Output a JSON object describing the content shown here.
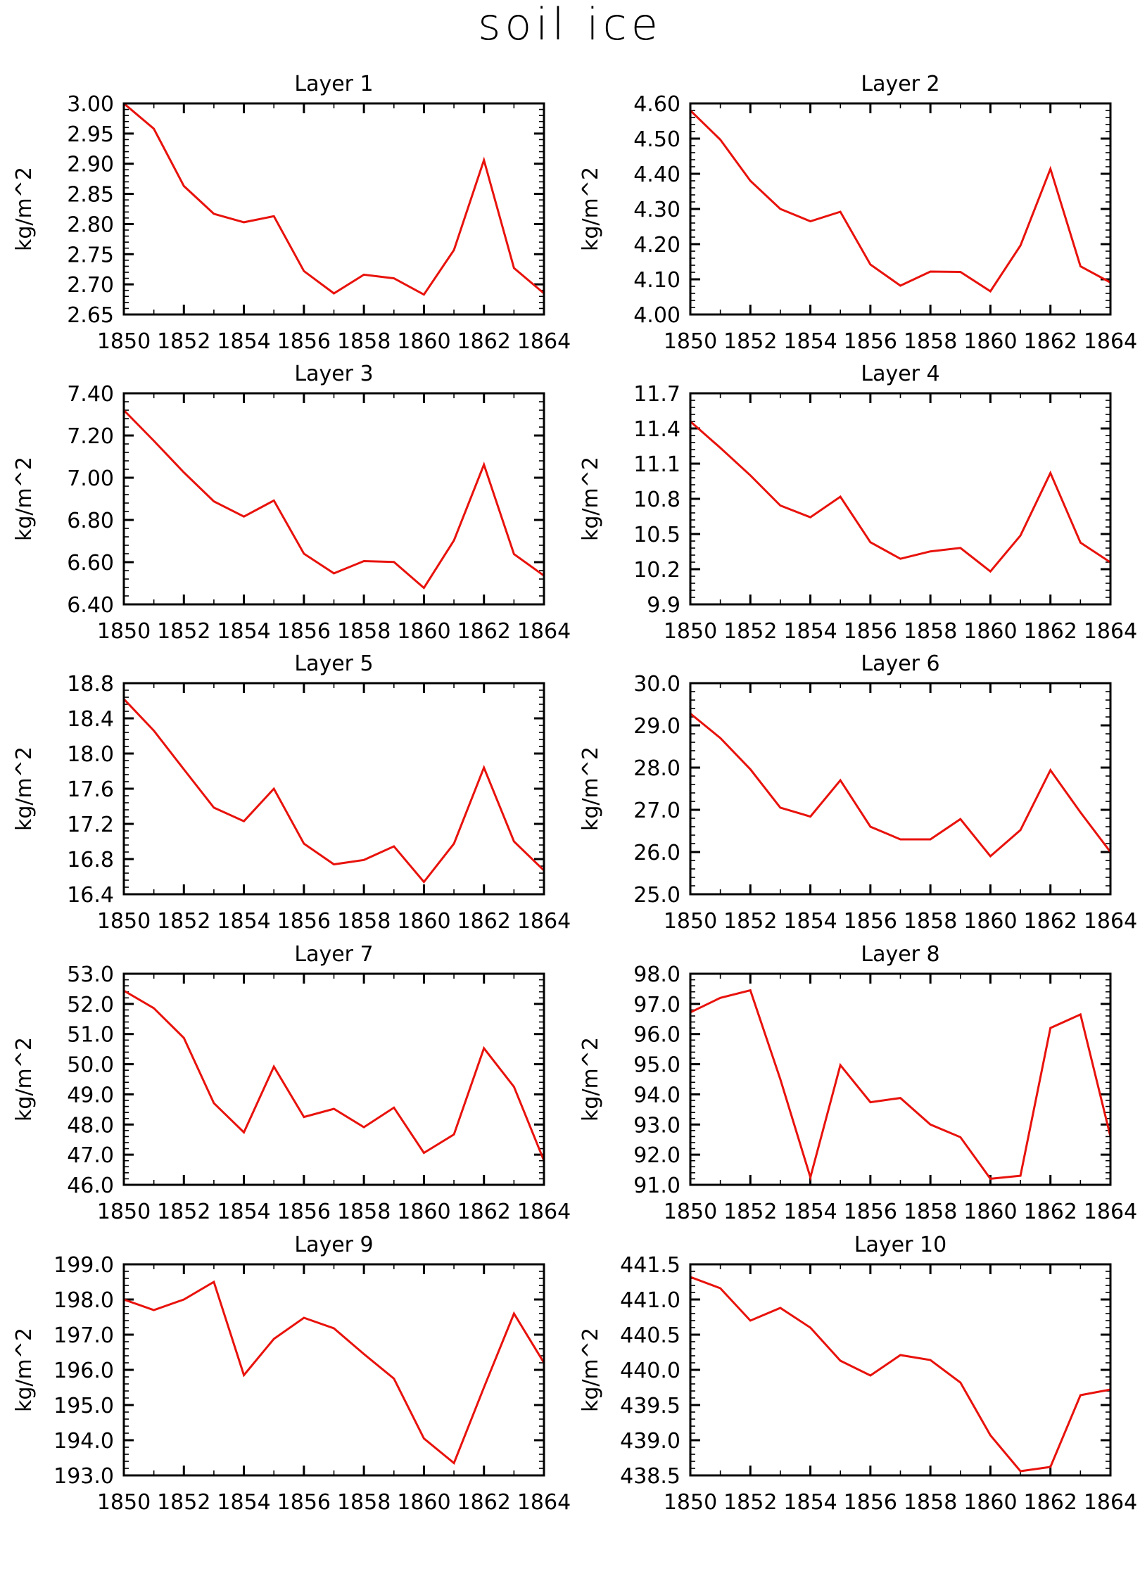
{
  "figure": {
    "title": "soil ice",
    "line_color": "#e8120c",
    "background": "#ffffff"
  },
  "chart_data": [
    {
      "type": "line",
      "title": "Layer 1",
      "ylabel": "kg/m^2",
      "x": [
        1850,
        1851,
        1852,
        1853,
        1854,
        1855,
        1856,
        1857,
        1858,
        1859,
        1860,
        1861,
        1862,
        1863,
        1864
      ],
      "values": [
        3.0,
        2.958,
        2.863,
        2.817,
        2.803,
        2.813,
        2.722,
        2.685,
        2.716,
        2.71,
        2.683,
        2.757,
        2.906,
        2.727,
        2.685
      ],
      "ylim": [
        2.65,
        3.0
      ],
      "yticks": [
        "2.65",
        "2.70",
        "2.75",
        "2.80",
        "2.85",
        "2.90",
        "2.95",
        "3.00"
      ],
      "xlim": [
        1850,
        1864
      ],
      "xticks": [
        "1850",
        "1852",
        "1854",
        "1856",
        "1858",
        "1860",
        "1862",
        "1864"
      ],
      "grid": false
    },
    {
      "type": "line",
      "title": "Layer 2",
      "ylabel": "kg/m^2",
      "x": [
        1850,
        1851,
        1852,
        1853,
        1854,
        1855,
        1856,
        1857,
        1858,
        1859,
        1860,
        1861,
        1862,
        1863,
        1864
      ],
      "values": [
        4.58,
        4.497,
        4.38,
        4.3,
        4.265,
        4.292,
        4.142,
        4.082,
        4.122,
        4.121,
        4.066,
        4.196,
        4.414,
        4.137,
        4.091
      ],
      "ylim": [
        4.0,
        4.6
      ],
      "yticks": [
        "4.00",
        "4.10",
        "4.20",
        "4.30",
        "4.40",
        "4.50",
        "4.60"
      ],
      "xlim": [
        1850,
        1864
      ],
      "xticks": [
        "1850",
        "1852",
        "1854",
        "1856",
        "1858",
        "1860",
        "1862",
        "1864"
      ],
      "grid": false
    },
    {
      "type": "line",
      "title": "Layer 3",
      "ylabel": "kg/m^2",
      "x": [
        1850,
        1851,
        1852,
        1853,
        1854,
        1855,
        1856,
        1857,
        1858,
        1859,
        1860,
        1861,
        1862,
        1863,
        1864
      ],
      "values": [
        7.32,
        7.175,
        7.025,
        6.888,
        6.816,
        6.892,
        6.64,
        6.547,
        6.605,
        6.601,
        6.478,
        6.703,
        7.062,
        6.638,
        6.536
      ],
      "ylim": [
        6.4,
        7.4
      ],
      "yticks": [
        "6.40",
        "6.60",
        "6.80",
        "7.00",
        "7.20",
        "7.40"
      ],
      "xlim": [
        1850,
        1864
      ],
      "xticks": [
        "1850",
        "1852",
        "1854",
        "1856",
        "1858",
        "1860",
        "1862",
        "1864"
      ],
      "grid": false
    },
    {
      "type": "line",
      "title": "Layer 4",
      "ylabel": "kg/m^2",
      "x": [
        1850,
        1851,
        1852,
        1853,
        1854,
        1855,
        1856,
        1857,
        1858,
        1859,
        1860,
        1861,
        1862,
        1863,
        1864
      ],
      "values": [
        11.46,
        11.235,
        11.0,
        10.743,
        10.643,
        10.818,
        10.43,
        10.289,
        10.352,
        10.381,
        10.181,
        10.487,
        11.02,
        10.427,
        10.258
      ],
      "ylim": [
        9.9,
        11.7
      ],
      "yticks": [
        "9.9",
        "10.2",
        "10.5",
        "10.8",
        "11.1",
        "11.4",
        "11.7"
      ],
      "xlim": [
        1850,
        1864
      ],
      "xticks": [
        "1850",
        "1852",
        "1854",
        "1856",
        "1858",
        "1860",
        "1862",
        "1864"
      ],
      "grid": false
    },
    {
      "type": "line",
      "title": "Layer 5",
      "ylabel": "kg/m^2",
      "x": [
        1850,
        1851,
        1852,
        1853,
        1854,
        1855,
        1856,
        1857,
        1858,
        1859,
        1860,
        1861,
        1862,
        1863,
        1864
      ],
      "values": [
        18.62,
        18.26,
        17.82,
        17.385,
        17.23,
        17.6,
        16.975,
        16.74,
        16.79,
        16.945,
        16.54,
        16.975,
        17.84,
        17.0,
        16.67
      ],
      "ylim": [
        16.4,
        18.8
      ],
      "yticks": [
        "16.4",
        "16.8",
        "17.2",
        "17.6",
        "18.0",
        "18.4",
        "18.8"
      ],
      "xlim": [
        1850,
        1864
      ],
      "xticks": [
        "1850",
        "1852",
        "1854",
        "1856",
        "1858",
        "1860",
        "1862",
        "1864"
      ],
      "grid": false
    },
    {
      "type": "line",
      "title": "Layer 6",
      "ylabel": "kg/m^2",
      "x": [
        1850,
        1851,
        1852,
        1853,
        1854,
        1855,
        1856,
        1857,
        1858,
        1859,
        1860,
        1861,
        1862,
        1863,
        1864
      ],
      "values": [
        29.28,
        28.7,
        27.96,
        27.05,
        26.84,
        27.7,
        26.6,
        26.3,
        26.3,
        26.78,
        25.9,
        26.52,
        27.94,
        26.94,
        26.0
      ],
      "ylim": [
        25.0,
        30.0
      ],
      "yticks": [
        "25.0",
        "26.0",
        "27.0",
        "28.0",
        "29.0",
        "30.0"
      ],
      "xlim": [
        1850,
        1864
      ],
      "xticks": [
        "1850",
        "1852",
        "1854",
        "1856",
        "1858",
        "1860",
        "1862",
        "1864"
      ],
      "grid": false
    },
    {
      "type": "line",
      "title": "Layer 7",
      "ylabel": "kg/m^2",
      "x": [
        1850,
        1851,
        1852,
        1853,
        1854,
        1855,
        1856,
        1857,
        1858,
        1859,
        1860,
        1861,
        1862,
        1863,
        1864
      ],
      "values": [
        52.44,
        51.86,
        50.87,
        48.71,
        47.74,
        49.92,
        48.25,
        48.52,
        47.91,
        48.56,
        47.06,
        47.67,
        50.53,
        49.25,
        46.8
      ],
      "ylim": [
        46.0,
        53.0
      ],
      "yticks": [
        "46.0",
        "47.0",
        "48.0",
        "49.0",
        "50.0",
        "51.0",
        "52.0",
        "53.0"
      ],
      "xlim": [
        1850,
        1864
      ],
      "xticks": [
        "1850",
        "1852",
        "1854",
        "1856",
        "1858",
        "1860",
        "1862",
        "1864"
      ],
      "grid": false
    },
    {
      "type": "line",
      "title": "Layer 8",
      "ylabel": "kg/m^2",
      "x": [
        1850,
        1851,
        1852,
        1853,
        1854,
        1855,
        1856,
        1857,
        1858,
        1859,
        1860,
        1861,
        1862,
        1863,
        1864
      ],
      "values": [
        96.72,
        97.2,
        97.45,
        94.5,
        91.25,
        94.97,
        93.74,
        93.88,
        93.0,
        92.58,
        91.2,
        91.3,
        96.2,
        96.65,
        92.6
      ],
      "ylim": [
        91.0,
        98.0
      ],
      "yticks": [
        "91.0",
        "92.0",
        "93.0",
        "94.0",
        "95.0",
        "96.0",
        "97.0",
        "98.0"
      ],
      "xlim": [
        1850,
        1864
      ],
      "xticks": [
        "1850",
        "1852",
        "1854",
        "1856",
        "1858",
        "1860",
        "1862",
        "1864"
      ],
      "grid": false
    },
    {
      "type": "line",
      "title": "Layer 9",
      "ylabel": "kg/m^2",
      "x": [
        1850,
        1851,
        1852,
        1853,
        1854,
        1855,
        1856,
        1857,
        1858,
        1859,
        1860,
        1861,
        1862,
        1863,
        1864
      ],
      "values": [
        198.0,
        197.7,
        198.0,
        198.5,
        195.85,
        196.88,
        197.48,
        197.18,
        196.45,
        195.75,
        194.05,
        193.35,
        195.5,
        197.6,
        196.2
      ],
      "ylim": [
        193.0,
        199.0
      ],
      "yticks": [
        "193.0",
        "194.0",
        "195.0",
        "196.0",
        "197.0",
        "198.0",
        "199.0"
      ],
      "xlim": [
        1850,
        1864
      ],
      "xticks": [
        "1850",
        "1852",
        "1854",
        "1856",
        "1858",
        "1860",
        "1862",
        "1864"
      ],
      "grid": false
    },
    {
      "type": "line",
      "title": "Layer 10",
      "ylabel": "kg/m^2",
      "x": [
        1850,
        1851,
        1852,
        1853,
        1854,
        1855,
        1856,
        1857,
        1858,
        1859,
        1860,
        1861,
        1862,
        1863,
        1864
      ],
      "values": [
        441.32,
        441.16,
        440.7,
        440.88,
        440.6,
        440.13,
        439.92,
        440.21,
        440.14,
        439.82,
        439.07,
        438.56,
        438.62,
        439.64,
        439.72
      ],
      "ylim": [
        438.5,
        441.5
      ],
      "yticks": [
        "438.5",
        "439.0",
        "439.5",
        "440.0",
        "440.5",
        "441.0",
        "441.5"
      ],
      "xlim": [
        1850,
        1864
      ],
      "xticks": [
        "1850",
        "1852",
        "1854",
        "1856",
        "1858",
        "1860",
        "1862",
        "1864"
      ],
      "grid": false
    }
  ]
}
